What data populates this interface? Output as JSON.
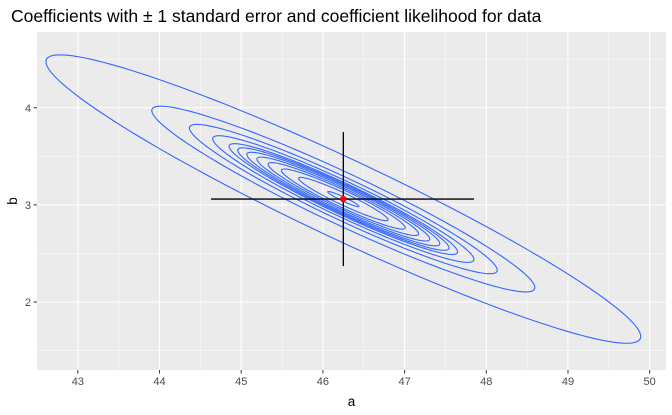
{
  "chart_data": {
    "type": "contour",
    "title": "Coefficients with ± 1 standard error and coefficient likelihood for data",
    "xlabel": "a",
    "ylabel": "b",
    "xlim": [
      42.5,
      50.2
    ],
    "ylim": [
      1.3,
      4.78
    ],
    "x_ticks": [
      43,
      44,
      45,
      46,
      47,
      48,
      49,
      50
    ],
    "y_ticks": [
      2,
      3,
      4
    ],
    "grid": true,
    "estimate": {
      "a": 46.25,
      "b": 3.06
    },
    "errorbars": {
      "a_low": 44.63,
      "a_high": 47.85,
      "b_low": 2.37,
      "b_high": 3.75
    },
    "contours": {
      "center": {
        "a": 46.25,
        "b": 3.06
      },
      "principal_axis_slope": -0.3937,
      "half_major_axis_a_units": [
        0.1905,
        0.5475,
        0.7575,
        0.92,
        1.0575,
        1.18,
        1.2925,
        1.3975,
        1.5975,
        1.8825,
        2.3425,
        3.6375
      ],
      "half_minor_axis_b_units": [
        0.0203,
        0.058,
        0.0825,
        0.0986,
        0.1145,
        0.1276,
        0.1392,
        0.1508,
        0.1725,
        0.2044,
        0.2523,
        0.3915
      ]
    },
    "colors": {
      "contour": "#3366FF",
      "errorbar": "#000000",
      "point": "#FF0000",
      "panel": "#EBEBEB",
      "grid": "#FFFFFF"
    }
  }
}
